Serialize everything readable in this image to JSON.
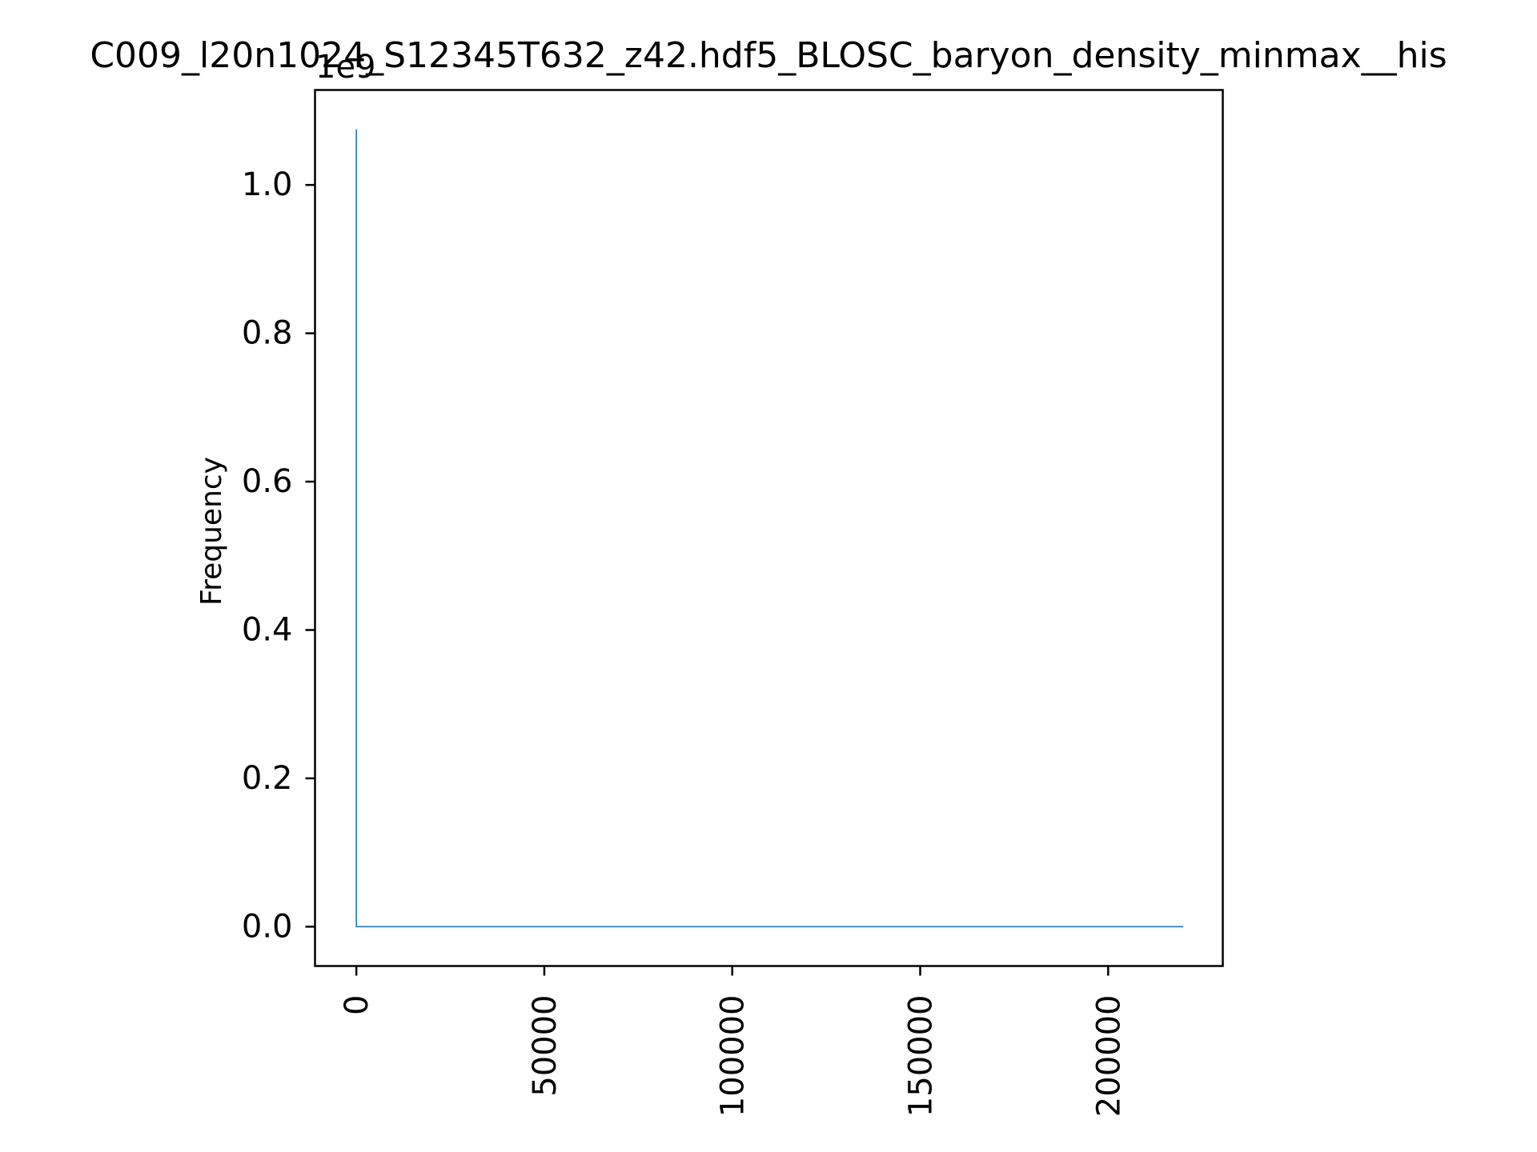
{
  "chart_data": {
    "type": "line",
    "title": "C009_l20n1024_S12345T632_z42.hdf5_BLOSC_baryon_density_minmax__his",
    "xlabel": "",
    "ylabel": "Frequency",
    "y_offset_label": "1e9",
    "xlim": [
      -11000,
      230500
    ],
    "ylim": [
      -0.053,
      1.128
    ],
    "x_ticks": [
      0,
      50000,
      100000,
      150000,
      200000
    ],
    "x_tick_labels": [
      "0",
      "50000",
      "100000",
      "150000",
      "200000"
    ],
    "y_ticks": [
      0.0,
      0.2,
      0.4,
      0.6,
      0.8,
      1.0
    ],
    "y_tick_labels": [
      "0.0",
      "0.2",
      "0.4",
      "0.6",
      "0.8",
      "1.0"
    ],
    "grid": false,
    "legend": "none",
    "colors": {
      "series": "#1f77b4",
      "axes": "#000000"
    },
    "series": [
      {
        "x": [
          0,
          0,
          220000
        ],
        "y": [
          1.075,
          0.0,
          0.0
        ]
      }
    ]
  }
}
